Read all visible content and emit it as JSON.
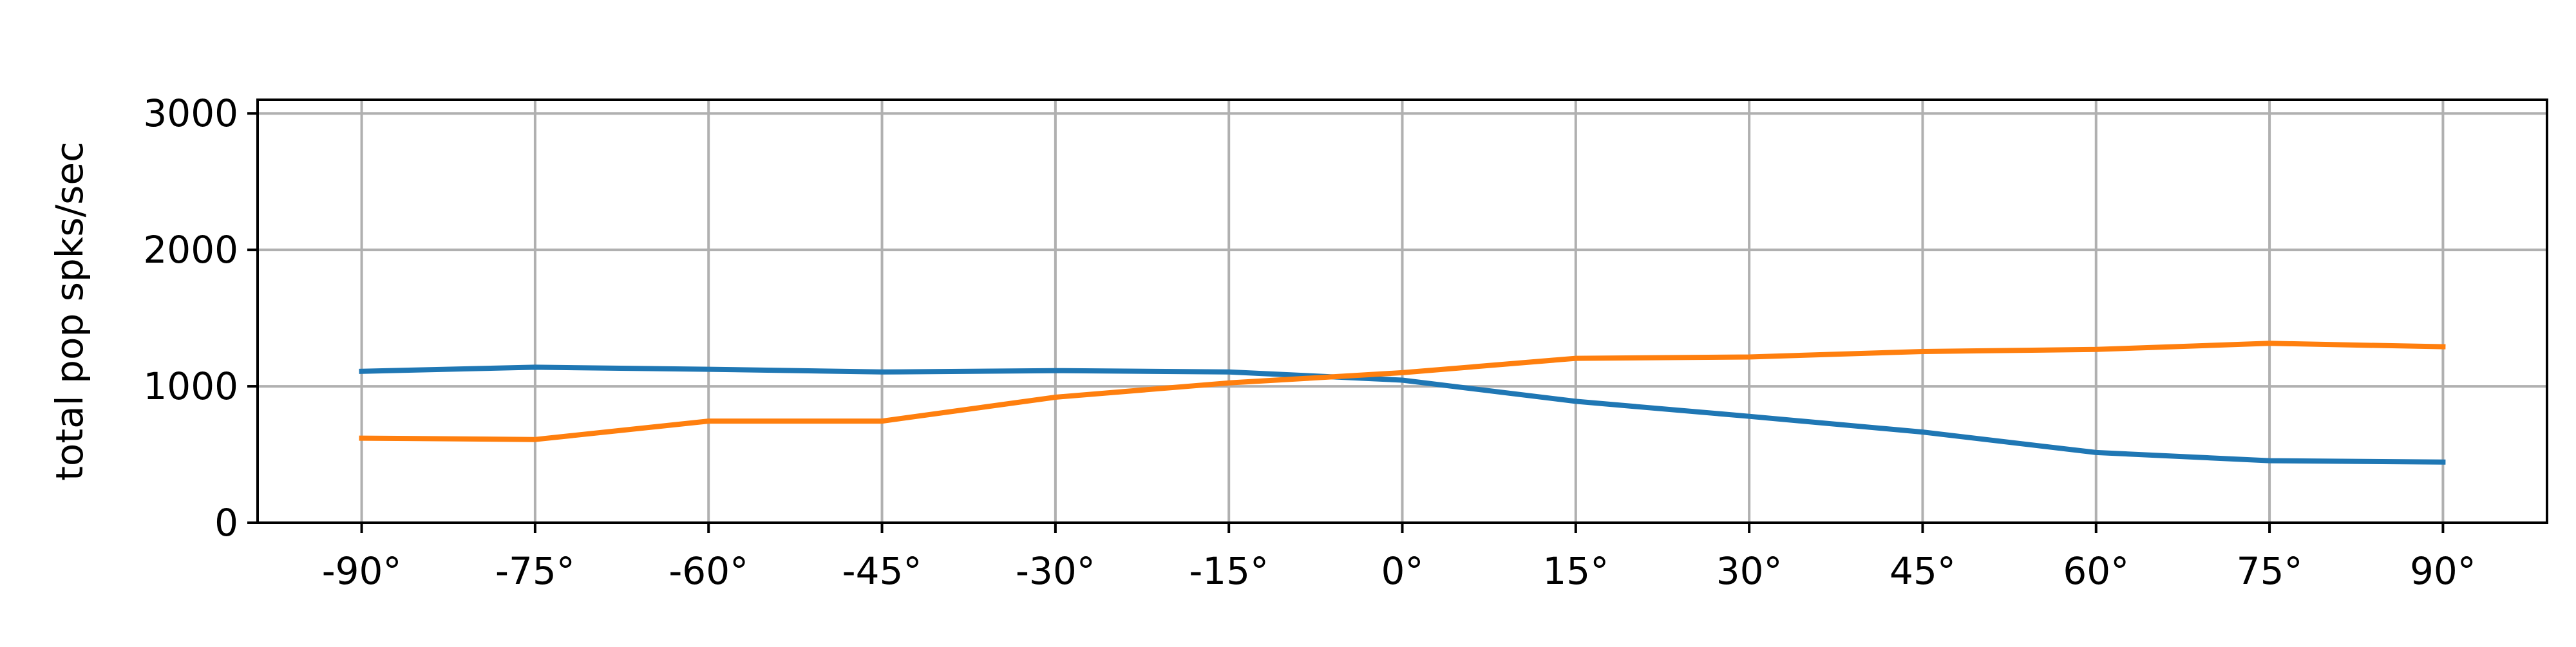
{
  "chart_data": {
    "type": "line",
    "title": "",
    "xlabel": "",
    "ylabel": "total pop spks/sec",
    "x": [
      -90,
      -75,
      -60,
      -45,
      -30,
      -15,
      0,
      15,
      30,
      45,
      60,
      75,
      90
    ],
    "x_tick_labels": [
      "-90°",
      "-75°",
      "-60°",
      "-45°",
      "-30°",
      "-15°",
      "0°",
      "15°",
      "30°",
      "45°",
      "60°",
      "75°",
      "90°"
    ],
    "y_ticks": [
      0,
      1000,
      2000,
      3000
    ],
    "y_tick_labels": [
      "0",
      "1000",
      "2000",
      "3000"
    ],
    "xlim": [
      -99,
      99
    ],
    "ylim": [
      0,
      3100
    ],
    "grid": true,
    "legend": "none",
    "series": [
      {
        "color": "#1f77b4",
        "values": [
          1110,
          1140,
          1125,
          1105,
          1115,
          1105,
          1045,
          890,
          780,
          665,
          515,
          455,
          445
        ]
      },
      {
        "color": "#ff7f0e",
        "values": [
          620,
          610,
          745,
          745,
          920,
          1025,
          1100,
          1205,
          1215,
          1255,
          1270,
          1315,
          1290
        ]
      }
    ]
  }
}
